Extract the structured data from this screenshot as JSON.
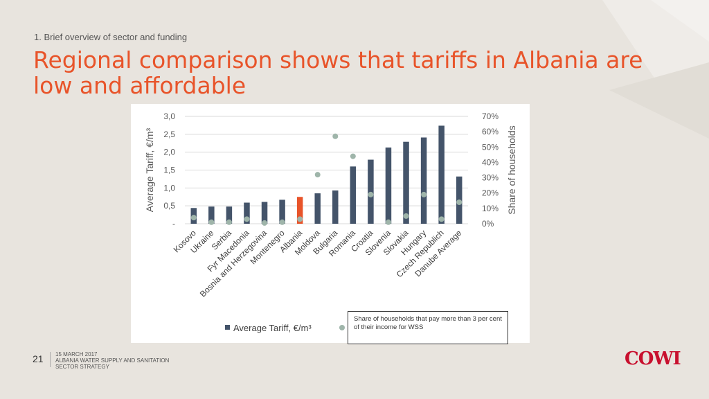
{
  "header": {
    "section": "1. Brief overview of sector and funding",
    "title": "Regional comparison shows that tariffs in Albania are low and affordable"
  },
  "note": "Share of households that pay more than 3 per cent of their income for WSS",
  "footer": {
    "page_number": "21",
    "date": "15 MARCH 2017",
    "doc_title_line1": "ALBANIA WATER SUPPLY AND SANITATION",
    "doc_title_line2": "SECTOR STRATEGY",
    "logo": "COWI"
  },
  "colors": {
    "accent": "#e8542a",
    "bar": "#44546a",
    "highlight_bar": "#e8542a",
    "dot": "#9fb5aa",
    "logo": "#c8102e"
  },
  "chart_data": {
    "type": "bar",
    "categories": [
      "Kosovo",
      "Ukraine",
      "Serbia",
      "Fyr Macedonia",
      "Bosnia and Herzegovina",
      "Montenegro",
      "Albania",
      "Moldova",
      "Bulgaria",
      "Romania",
      "Croatia",
      "Slovenia",
      "Slovakia",
      "Hungary",
      "Czech Republich",
      "Danube Average"
    ],
    "highlight_category": "Albania",
    "series": [
      {
        "name": "Average Tariff, €/m³",
        "type": "bar",
        "axis": "left",
        "values": [
          0.44,
          0.48,
          0.48,
          0.59,
          0.61,
          0.67,
          0.75,
          0.85,
          0.93,
          1.6,
          1.79,
          2.13,
          2.29,
          2.41,
          2.74,
          1.32
        ]
      },
      {
        "name": "",
        "type": "scatter",
        "axis": "right",
        "values": [
          0.04,
          0.01,
          0.01,
          0.03,
          0.005,
          0.01,
          0.03,
          0.32,
          0.57,
          0.44,
          0.19,
          0.01,
          0.05,
          0.19,
          0.03,
          0.14
        ]
      }
    ],
    "ylabel": "Average Tariff, €/m³",
    "ylim": [
      0,
      3
    ],
    "y_ticks": [
      "-",
      "0,5",
      "1,0",
      "1,5",
      "2,0",
      "2,5",
      "3,0"
    ],
    "y_tick_values": [
      0,
      0.5,
      1.0,
      1.5,
      2.0,
      2.5,
      3.0
    ],
    "y2label": "Share of households",
    "y2lim": [
      0,
      0.7
    ],
    "y2_ticks": [
      "0%",
      "10%",
      "20%",
      "30%",
      "40%",
      "50%",
      "60%",
      "70%"
    ],
    "y2_tick_values": [
      0,
      0.1,
      0.2,
      0.3,
      0.4,
      0.5,
      0.6,
      0.7
    ],
    "legend_bar_label": "Average Tariff, €/m³",
    "grid": true,
    "legend_position": "bottom"
  }
}
